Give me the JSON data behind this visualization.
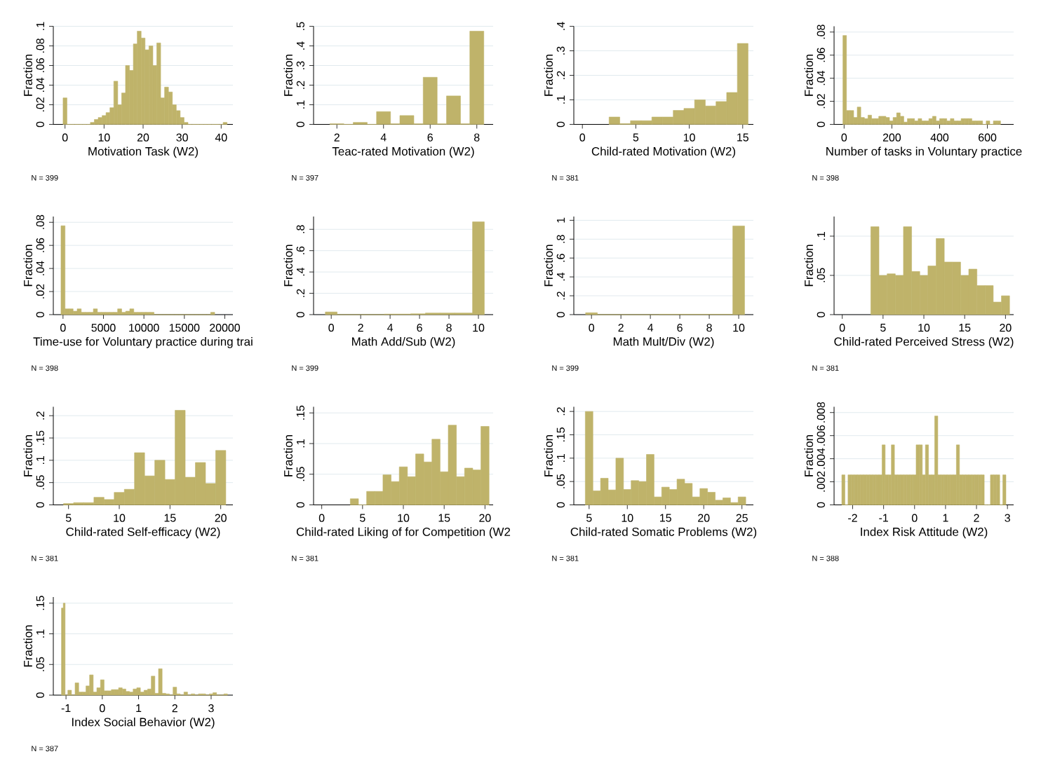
{
  "chart_data": [
    {
      "type": "histogram",
      "xlabel": "Motivation Task (W2)",
      "ylabel": "Fraction",
      "annotations": [
        "N = 399"
      ],
      "color": "#bfb36a",
      "grid": "y",
      "bins": [
        -0.5,
        0.5,
        1.5,
        2.5,
        3.5,
        4.5,
        5.5,
        6.5,
        7.5,
        8.5,
        9.5,
        10.5,
        11.5,
        12.5,
        13.5,
        14.5,
        15.5,
        16.5,
        17.5,
        18.5,
        19.5,
        20.5,
        21.5,
        22.5,
        23.5,
        24.5,
        25.5,
        26.5,
        27.5,
        28.5,
        29.5,
        30.5,
        31.5,
        32.5,
        33.5,
        34.5,
        35.5,
        36.5,
        37.5,
        38.5,
        39.5,
        40.5,
        41.5
      ],
      "values": [
        0.027,
        0,
        0,
        0,
        0,
        0,
        0,
        0.002,
        0.005,
        0.007,
        0.009,
        0.012,
        0.017,
        0.044,
        0.02,
        0.032,
        0.06,
        0.055,
        0.082,
        0.095,
        0.088,
        0.076,
        0.08,
        0.06,
        0.083,
        0.027,
        0.038,
        0.033,
        0.02,
        0.014,
        0.007,
        0.002,
        0,
        0,
        0,
        0,
        0,
        0,
        0,
        0,
        0,
        0.002
      ],
      "xlim": [
        -3,
        43
      ],
      "ylim": [
        0,
        0.1
      ],
      "xticks": [
        0,
        10,
        20,
        30,
        40
      ],
      "yticks": [
        0,
        {
          "value": 0.02,
          "label": ".02"
        },
        {
          "value": 0.04,
          "label": ".04"
        },
        {
          "value": 0.06,
          "label": ".06"
        },
        {
          "value": 0.08,
          "label": ".08"
        },
        {
          "value": 0.1,
          "label": ".1"
        }
      ]
    },
    {
      "type": "histogram",
      "xlabel": "Teac-rated Motivation (W2)",
      "ylabel": "Fraction",
      "annotations": [
        "N = 397"
      ],
      "color": "#bfb36a",
      "grid": "y",
      "bins": [
        1.7,
        2.3,
        2.7,
        3.3,
        3.7,
        4.3,
        4.7,
        5.3,
        5.7,
        6.3,
        6.7,
        7.3,
        7.7,
        8.3
      ],
      "values": [
        0.003,
        0,
        0.01,
        0,
        0.065,
        0.003,
        0.045,
        0.003,
        0.24,
        0.003,
        0.145,
        0.003,
        0.475
      ],
      "xlim": [
        1,
        8.7
      ],
      "ylim": [
        0,
        0.5
      ],
      "xticks": [
        2,
        4,
        6,
        8
      ],
      "yticks": [
        0,
        {
          "value": 0.1,
          "label": ".1"
        },
        {
          "value": 0.2,
          "label": ".2"
        },
        {
          "value": 0.3,
          "label": ".3"
        },
        {
          "value": 0.4,
          "label": ".4"
        },
        {
          "value": 0.5,
          "label": ".5"
        }
      ]
    },
    {
      "type": "histogram",
      "xlabel": "Child-rated Motivation (W2)",
      "ylabel": "Fraction",
      "annotations": [
        "N = 381"
      ],
      "color": "#bfb36a",
      "grid": "y",
      "bins": [
        2.5,
        3.5,
        4.5,
        5.5,
        6.5,
        7.5,
        8.5,
        9.5,
        10.5,
        11.5,
        12.5,
        13.5,
        14.5,
        15.5
      ],
      "values": [
        0.03,
        0.003,
        0.015,
        0.015,
        0.03,
        0.03,
        0.057,
        0.065,
        0.1,
        0.075,
        0.093,
        0.13,
        0.33
      ],
      "xlim": [
        -0.8,
        16
      ],
      "ylim": [
        0,
        0.4
      ],
      "xticks": [
        0,
        5,
        10,
        15
      ],
      "yticks": [
        0,
        {
          "value": 0.1,
          "label": ".1"
        },
        {
          "value": 0.2,
          "label": ".2"
        },
        {
          "value": 0.3,
          "label": ".3"
        },
        {
          "value": 0.4,
          "label": ".4"
        }
      ]
    },
    {
      "type": "histogram",
      "xlabel": "Number of tasks in Voluntary practice",
      "ylabel": "Fraction",
      "annotations": [
        "N = 398"
      ],
      "color": "#bfb36a",
      "grid": "y",
      "bins": [
        -5,
        10,
        25,
        40,
        55,
        70,
        85,
        100,
        115,
        130,
        145,
        160,
        175,
        190,
        205,
        220,
        235,
        250,
        265,
        280,
        295,
        310,
        325,
        340,
        355,
        370,
        385,
        400,
        415,
        430,
        445,
        460,
        475,
        490,
        505,
        520,
        535,
        550,
        565,
        580,
        595,
        610,
        625,
        640,
        655
      ],
      "values": [
        0.077,
        0.012,
        0.012,
        0.006,
        0.015,
        0.006,
        0.005,
        0.008,
        0.005,
        0.005,
        0.007,
        0.007,
        0.006,
        0.003,
        0.006,
        0.01,
        0.007,
        0.002,
        0.005,
        0.005,
        0.003,
        0.005,
        0.003,
        0.003,
        0.005,
        0.007,
        0.003,
        0.005,
        0.005,
        0.003,
        0.005,
        0.003,
        0.003,
        0.005,
        0.005,
        0.005,
        0.003,
        0.003,
        0.003,
        0,
        0.003,
        0,
        0.003,
        0.003
      ],
      "xlim": [
        -42,
        710
      ],
      "ylim": [
        0,
        0.085
      ],
      "xticks": [
        0,
        200,
        400,
        600
      ],
      "yticks": [
        0,
        {
          "value": 0.02,
          "label": ".02"
        },
        {
          "value": 0.04,
          "label": ".04"
        },
        {
          "value": 0.06,
          "label": ".06"
        },
        {
          "value": 0.08,
          "label": ".08"
        }
      ]
    },
    {
      "type": "histogram",
      "xlabel": "Time-use for Voluntary practice during trai",
      "ylabel": "Fraction",
      "annotations": [
        "N = 398"
      ],
      "color": "#bfb36a",
      "grid": "y",
      "bins": [
        -250,
        250,
        750,
        1250,
        1750,
        2250,
        2750,
        3250,
        3750,
        4250,
        4750,
        5250,
        5750,
        6250,
        6750,
        7250,
        7750,
        8250,
        8750,
        9250,
        9750,
        10250,
        10750,
        11250,
        11750,
        12250,
        12750,
        13250,
        13750,
        14250,
        14750,
        15250,
        15750,
        16250,
        16750,
        17250,
        17750,
        18250,
        18750
      ],
      "values": [
        0.077,
        0.005,
        0.005,
        0.003,
        0.005,
        0.002,
        0.002,
        0.002,
        0.005,
        0.002,
        0.002,
        0.002,
        0.002,
        0.002,
        0.005,
        0.002,
        0.003,
        0.005,
        0.002,
        0.002,
        0.002,
        0.002,
        0.002,
        0,
        0,
        0,
        0,
        0,
        0,
        0,
        0,
        0,
        0,
        0,
        0,
        0,
        0,
        0.002
      ],
      "xlim": [
        -1200,
        21000
      ],
      "ylim": [
        0,
        0.085
      ],
      "xticks": [
        0,
        5000,
        10000,
        15000,
        20000
      ],
      "yticks": [
        0,
        {
          "value": 0.02,
          "label": ".02"
        },
        {
          "value": 0.04,
          "label": ".04"
        },
        {
          "value": 0.06,
          "label": ".06"
        },
        {
          "value": 0.08,
          "label": ".08"
        }
      ]
    },
    {
      "type": "histogram",
      "xlabel": "Math Add/Sub (W2)",
      "ylabel": "Fraction",
      "annotations": [
        "N = 399"
      ],
      "color": "#bfb36a",
      "grid": "y",
      "bins": [
        -0.4,
        0.4,
        3.6,
        4.4,
        5.4,
        6.4,
        7.4,
        8.4,
        9.6,
        10.4
      ],
      "values": [
        0.025,
        0,
        0.005,
        0.005,
        0.008,
        0.015,
        0.015,
        0.015,
        0.87
      ],
      "xlim": [
        -1.2,
        11
      ],
      "ylim": [
        0,
        0.92
      ],
      "xticks": [
        0,
        2,
        4,
        6,
        8,
        10
      ],
      "yticks": [
        0,
        {
          "value": 0.2,
          "label": ".2"
        },
        {
          "value": 0.4,
          "label": ".4"
        },
        {
          "value": 0.6,
          "label": ".6"
        },
        {
          "value": 0.8,
          "label": ".8"
        }
      ]
    },
    {
      "type": "histogram",
      "xlabel": "Math Mult/Div (W2)",
      "ylabel": "Fraction",
      "annotations": [
        "N = 399"
      ],
      "color": "#bfb36a",
      "grid": "y",
      "bins": [
        -0.4,
        0.4,
        4.6,
        9.6,
        10.4
      ],
      "values": [
        0.02,
        0,
        0.004,
        0.94
      ],
      "xlim": [
        -1.2,
        11
      ],
      "ylim": [
        0,
        1.04
      ],
      "xticks": [
        0,
        2,
        4,
        6,
        8,
        10
      ],
      "yticks": [
        0,
        {
          "value": 0.2,
          "label": ".2"
        },
        {
          "value": 0.4,
          "label": ".4"
        },
        {
          "value": 0.6,
          "label": ".6"
        },
        {
          "value": 0.8,
          "label": ".8"
        },
        1
      ]
    },
    {
      "type": "histogram",
      "xlabel": "Child-rated Perceived Stress (W2)",
      "ylabel": "Fraction",
      "annotations": [
        "N = 381"
      ],
      "color": "#bfb36a",
      "grid": "y",
      "bins": [
        3.5,
        4.5,
        5.5,
        6.5,
        7.5,
        8.5,
        9.5,
        10.5,
        11.5,
        12.5,
        13.5,
        14.5,
        15.5,
        16.5,
        17.5,
        18.5,
        19.5,
        20.5
      ],
      "values": [
        0.112,
        0.05,
        0.052,
        0.05,
        0.112,
        0.055,
        0.05,
        0.062,
        0.097,
        0.067,
        0.067,
        0.05,
        0.058,
        0.037,
        0.037,
        0.016,
        0.024
      ],
      "xlim": [
        -1,
        21
      ],
      "ylim": [
        0,
        0.125
      ],
      "xticks": [
        0,
        5,
        10,
        15,
        20
      ],
      "yticks": [
        0,
        {
          "value": 0.05,
          "label": ".05"
        },
        {
          "value": 0.1,
          "label": ".1"
        }
      ]
    },
    {
      "type": "histogram",
      "xlabel": "Child-rated Self-efficacy (W2)",
      "ylabel": "Fraction",
      "annotations": [
        "N = 381"
      ],
      "color": "#bfb36a",
      "grid": "y",
      "bins": [
        4.5,
        5.5,
        6.5,
        7.5,
        8.5,
        9.5,
        10.5,
        11.5,
        12.5,
        13.5,
        14.5,
        15.5,
        16.5,
        17.5,
        18.5,
        19.5,
        20.5
      ],
      "values": [
        0.003,
        0.005,
        0.005,
        0.017,
        0.012,
        0.028,
        0.035,
        0.117,
        0.065,
        0.1,
        0.057,
        0.212,
        0.062,
        0.095,
        0.048,
        0.122
      ],
      "xlim": [
        3.5,
        21.2
      ],
      "ylim": [
        0,
        0.22
      ],
      "xticks": [
        5,
        10,
        15,
        20
      ],
      "yticks": [
        0,
        {
          "value": 0.05,
          "label": ".05"
        },
        {
          "value": 0.1,
          "label": ".1"
        },
        {
          "value": 0.15,
          "label": ".15"
        },
        {
          "value": 0.2,
          "label": ".2"
        }
      ]
    },
    {
      "type": "histogram",
      "xlabel": "Child-rated Liking of for Competition (W2",
      "ylabel": "Fraction",
      "annotations": [
        "N = 381"
      ],
      "color": "#bfb36a",
      "grid": "y",
      "bins": [
        3.5,
        4.5,
        5.5,
        6.5,
        7.5,
        8.5,
        9.5,
        10.5,
        11.5,
        12.5,
        13.5,
        14.5,
        15.5,
        16.5,
        17.5,
        18.5,
        19.5,
        20.5
      ],
      "values": [
        0.01,
        0,
        0.022,
        0.022,
        0.049,
        0.038,
        0.062,
        0.046,
        0.083,
        0.07,
        0.107,
        0.054,
        0.13,
        0.046,
        0.06,
        0.057,
        0.128
      ],
      "xlim": [
        -1,
        21
      ],
      "ylim": [
        0,
        0.16
      ],
      "xticks": [
        0,
        5,
        10,
        15,
        20
      ],
      "yticks": [
        0,
        {
          "value": 0.05,
          "label": ".05"
        },
        {
          "value": 0.1,
          "label": ".1"
        },
        {
          "value": 0.15,
          "label": ".15"
        }
      ]
    },
    {
      "type": "histogram",
      "xlabel": "Child-rated Somatic Problems (W2)",
      "ylabel": "Fraction",
      "annotations": [
        "N = 381"
      ],
      "color": "#bfb36a",
      "grid": "y",
      "bins": [
        4.5,
        5.5,
        6.5,
        7.5,
        8.5,
        9.5,
        10.5,
        11.5,
        12.5,
        13.5,
        14.5,
        15.5,
        16.5,
        17.5,
        18.5,
        19.5,
        20.5,
        21.5,
        22.5,
        23.5,
        24.5,
        25.5
      ],
      "values": [
        0.2,
        0.03,
        0.057,
        0.032,
        0.1,
        0.033,
        0.052,
        0.05,
        0.108,
        0.017,
        0.038,
        0.033,
        0.055,
        0.046,
        0.017,
        0.035,
        0.027,
        0.01,
        0.015,
        0.005,
        0.017
      ],
      "xlim": [
        3,
        26.5
      ],
      "ylim": [
        0,
        0.21
      ],
      "xticks": [
        5,
        10,
        15,
        20,
        25
      ],
      "yticks": [
        0,
        {
          "value": 0.05,
          "label": ".05"
        },
        {
          "value": 0.1,
          "label": ".1"
        },
        {
          "value": 0.15,
          "label": ".15"
        },
        {
          "value": 0.2,
          "label": ".2"
        }
      ]
    },
    {
      "type": "histogram",
      "xlabel": "Index Risk Attitude (W2)",
      "ylabel": "Fraction",
      "annotations": [
        "N = 388"
      ],
      "color": "#bfb36a",
      "grid": "y",
      "bins": [
        -2.35,
        -2.25,
        -2.15,
        -2.05,
        -1.95,
        -1.85,
        -1.75,
        -1.65,
        -1.55,
        -1.45,
        -1.35,
        -1.25,
        -1.15,
        -1.05,
        -0.95,
        -0.85,
        -0.75,
        -0.65,
        -0.55,
        -0.45,
        -0.35,
        -0.25,
        -0.15,
        -0.05,
        0.05,
        0.15,
        0.25,
        0.35,
        0.45,
        0.55,
        0.65,
        0.75,
        0.85,
        0.95,
        1.05,
        1.15,
        1.25,
        1.35,
        1.45,
        1.55,
        1.65,
        1.75,
        1.85,
        1.95,
        2.05,
        2.15,
        2.25,
        2.35,
        2.45,
        2.55,
        2.65,
        2.75,
        2.85,
        2.95
      ],
      "values": [
        0.0026,
        0,
        0.0026,
        0.0026,
        0.0026,
        0.0026,
        0.0026,
        0.0026,
        0.0026,
        0.0026,
        0.0026,
        0.0026,
        0.0026,
        0.0052,
        0.0026,
        0.0026,
        0.0052,
        0.0026,
        0.0026,
        0.0026,
        0.0026,
        0.0026,
        0.0026,
        0.0026,
        0.0052,
        0.0052,
        0.0026,
        0.0052,
        0.0026,
        0.0026,
        0.0077,
        0.0026,
        0.0026,
        0.0026,
        0.0026,
        0.0026,
        0.0026,
        0.0052,
        0.0026,
        0.0026,
        0.0026,
        0.0026,
        0.0026,
        0.0026,
        0.0026,
        0.0026,
        0,
        0,
        0.0026,
        0.0026,
        0.0026,
        0,
        0.0026
      ],
      "xlim": [
        -2.6,
        3.2
      ],
      "ylim": [
        0,
        0.0085
      ],
      "xticks": [
        -2,
        -1,
        0,
        1,
        2,
        3
      ],
      "yticks": [
        0,
        {
          "value": 0.002,
          "label": ".002"
        },
        {
          "value": 0.004,
          "label": ".004"
        },
        {
          "value": 0.006,
          "label": ".006"
        },
        {
          "value": 0.008,
          "label": ".008"
        }
      ]
    },
    {
      "type": "histogram",
      "xlabel": "Index Social Behavior (W2)",
      "ylabel": "Fraction",
      "annotations": [
        "N = 387"
      ],
      "color": "#bfb36a",
      "grid": "y",
      "bins": [
        -1.125,
        -1.075,
        -1.025,
        -0.95,
        -0.85,
        -0.75,
        -0.65,
        -0.55,
        -0.45,
        -0.35,
        -0.25,
        -0.15,
        -0.05,
        0.05,
        0.15,
        0.25,
        0.35,
        0.45,
        0.55,
        0.65,
        0.75,
        0.85,
        0.95,
        1.05,
        1.15,
        1.25,
        1.35,
        1.45,
        1.55,
        1.65,
        1.75,
        1.85,
        1.95,
        2.05,
        2.15,
        2.25,
        2.35,
        2.45,
        2.55,
        2.65,
        2.75,
        2.85,
        2.95,
        3.05,
        3.15,
        3.25,
        3.35,
        3.45
      ],
      "values": [
        0.142,
        0.15,
        0,
        0.008,
        0,
        0.02,
        0.005,
        0.005,
        0.015,
        0.033,
        0.005,
        0.012,
        0.025,
        0.007,
        0.007,
        0.009,
        0.009,
        0.012,
        0.01,
        0.006,
        0.005,
        0.01,
        0.012,
        0.005,
        0.008,
        0.01,
        0.031,
        0.003,
        0.043,
        0.003,
        0.002,
        0,
        0.013,
        0.002,
        0,
        0.005,
        0,
        0.002,
        0,
        0.002,
        0.002,
        0,
        0.002,
        0.004,
        0,
        0,
        0.002
      ],
      "xlim": [
        -1.35,
        3.6
      ],
      "ylim": [
        0,
        0.16
      ],
      "xticks": [
        -1,
        0,
        1,
        2,
        3
      ],
      "yticks": [
        0,
        {
          "value": 0.05,
          "label": ".05"
        },
        {
          "value": 0.1,
          "label": ".1"
        },
        {
          "value": 0.15,
          "label": ".15"
        }
      ]
    }
  ]
}
